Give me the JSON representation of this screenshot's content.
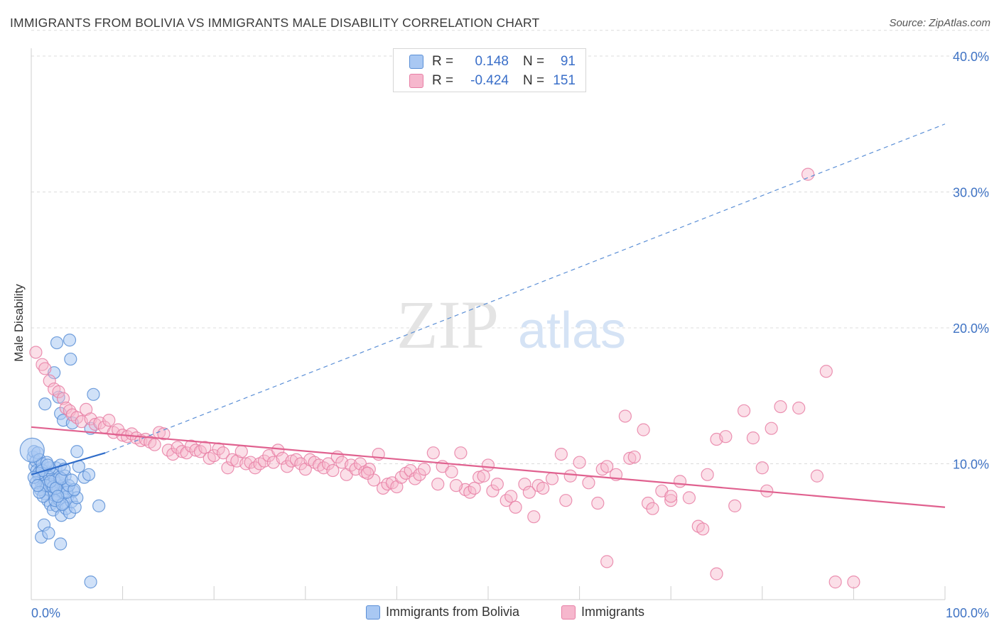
{
  "title": "IMMIGRANTS FROM BOLIVIA VS IMMIGRANTS MALE DISABILITY CORRELATION CHART",
  "source": "Source: ZipAtlas.com",
  "watermark": {
    "zip": "ZIP",
    "atlas": "atlas"
  },
  "colors": {
    "blue": "#5b8fd6",
    "blue_fill": "#a9c8f3",
    "blue_line": "#2f6cc9",
    "pink": "#e77fa5",
    "pink_fill": "#f6b7cd",
    "pink_line": "#e0618f",
    "axis_text": "#3f73c4",
    "grid": "#dcdcdc"
  },
  "legend": {
    "rows": [
      {
        "r_label": "R =",
        "r_value": " 0.148",
        "n_label": "N =",
        "n_value": " 91",
        "series": "blue"
      },
      {
        "r_label": "R =",
        "r_value": "-0.424",
        "n_label": "N =",
        "n_value": "151",
        "series": "pink"
      }
    ]
  },
  "bottom_legend": [
    {
      "label": "Immigrants from Bolivia",
      "series": "blue"
    },
    {
      "label": "Immigrants",
      "series": "pink"
    }
  ],
  "chart_data": {
    "type": "scatter",
    "title": "IMMIGRANTS FROM BOLIVIA VS IMMIGRANTS MALE DISABILITY CORRELATION CHART",
    "xlabel": "",
    "ylabel": "Male Disability",
    "xlim": [
      0,
      100
    ],
    "ylim": [
      0,
      42
    ],
    "x_tick_labels": [
      "0.0%",
      "100.0%"
    ],
    "y_ticks": [
      10,
      20,
      30,
      40
    ],
    "y_tick_labels": [
      "10.0%",
      "20.0%",
      "30.0%",
      "40.0%"
    ],
    "grid": true,
    "series": [
      {
        "name": "Immigrants from Bolivia",
        "color": "blue",
        "R": 0.148,
        "N": 91,
        "trend_solid": [
          [
            0,
            9.2
          ],
          [
            8.1,
            10.8
          ]
        ],
        "trend_dashed": [
          [
            8.1,
            10.8
          ],
          [
            100,
            35.0
          ]
        ],
        "points": [
          [
            0.2,
            10.5
          ],
          [
            0.3,
            10.9
          ],
          [
            0.4,
            9.8
          ],
          [
            0.5,
            10.2
          ],
          [
            0.6,
            9.5
          ],
          [
            0.7,
            10.8
          ],
          [
            0.8,
            9.1
          ],
          [
            0.9,
            10.3
          ],
          [
            1.0,
            8.7
          ],
          [
            1.1,
            9.6
          ],
          [
            1.2,
            10.0
          ],
          [
            1.3,
            8.3
          ],
          [
            1.4,
            9.2
          ],
          [
            1.5,
            7.8
          ],
          [
            1.6,
            8.9
          ],
          [
            1.7,
            9.4
          ],
          [
            1.8,
            7.3
          ],
          [
            1.9,
            8.1
          ],
          [
            2.0,
            9.0
          ],
          [
            2.1,
            7.0
          ],
          [
            2.2,
            8.5
          ],
          [
            2.3,
            9.3
          ],
          [
            2.4,
            6.6
          ],
          [
            2.5,
            7.7
          ],
          [
            2.6,
            8.8
          ],
          [
            2.7,
            9.7
          ],
          [
            2.8,
            6.9
          ],
          [
            2.9,
            8.0
          ],
          [
            3.0,
            7.4
          ],
          [
            3.1,
            8.6
          ],
          [
            3.2,
            9.9
          ],
          [
            3.3,
            6.2
          ],
          [
            3.4,
            7.9
          ],
          [
            3.5,
            8.4
          ],
          [
            3.6,
            7.1
          ],
          [
            3.7,
            9.1
          ],
          [
            3.8,
            6.7
          ],
          [
            3.9,
            8.2
          ],
          [
            4.0,
            7.6
          ],
          [
            4.2,
            6.4
          ],
          [
            4.4,
            7.2
          ],
          [
            4.6,
            8.0
          ],
          [
            4.8,
            6.8
          ],
          [
            5.0,
            7.5
          ],
          [
            1.1,
            4.6
          ],
          [
            1.4,
            5.5
          ],
          [
            1.9,
            4.9
          ],
          [
            3.2,
            4.1
          ],
          [
            1.5,
            14.4
          ],
          [
            2.5,
            16.7
          ],
          [
            2.8,
            18.9
          ],
          [
            3.0,
            14.9
          ],
          [
            3.2,
            13.7
          ],
          [
            3.5,
            13.2
          ],
          [
            4.2,
            19.1
          ],
          [
            4.3,
            17.7
          ],
          [
            4.5,
            13.0
          ],
          [
            5.0,
            10.9
          ],
          [
            5.2,
            9.8
          ],
          [
            5.8,
            9.0
          ],
          [
            6.3,
            9.2
          ],
          [
            6.5,
            12.6
          ],
          [
            6.8,
            15.1
          ],
          [
            7.4,
            6.9
          ],
          [
            6.5,
            1.3
          ],
          [
            0.8,
            9.3
          ],
          [
            1.0,
            8.1
          ],
          [
            1.3,
            7.6
          ],
          [
            1.6,
            8.4
          ],
          [
            2.0,
            9.7
          ],
          [
            2.4,
            8.3
          ],
          [
            2.6,
            7.3
          ],
          [
            3.1,
            9.0
          ],
          [
            3.4,
            7.0
          ],
          [
            3.9,
            7.9
          ],
          [
            4.1,
            8.4
          ],
          [
            4.7,
            8.1
          ],
          [
            0.5,
            8.6
          ],
          [
            0.9,
            7.9
          ],
          [
            1.2,
            9.5
          ],
          [
            1.7,
            10.1
          ],
          [
            2.1,
            8.7
          ],
          [
            2.7,
            8.2
          ],
          [
            3.3,
            8.9
          ],
          [
            3.6,
            9.6
          ],
          [
            0.3,
            9.0
          ],
          [
            0.7,
            8.4
          ],
          [
            1.8,
            9.9
          ],
          [
            2.9,
            7.6
          ],
          [
            4.4,
            8.8
          ],
          [
            0.1,
            11.0
          ]
        ]
      },
      {
        "name": "Immigrants",
        "color": "pink",
        "R": -0.424,
        "N": 151,
        "trend_solid": [
          [
            0,
            12.7
          ],
          [
            100,
            6.8
          ]
        ],
        "points": [
          [
            0.5,
            18.2
          ],
          [
            1.2,
            17.3
          ],
          [
            1.5,
            17.0
          ],
          [
            2.0,
            16.1
          ],
          [
            2.5,
            15.5
          ],
          [
            3.0,
            15.3
          ],
          [
            3.5,
            14.8
          ],
          [
            3.8,
            14.1
          ],
          [
            4.2,
            13.9
          ],
          [
            4.5,
            13.6
          ],
          [
            5.0,
            13.4
          ],
          [
            5.5,
            13.1
          ],
          [
            6.0,
            14.0
          ],
          [
            6.5,
            13.3
          ],
          [
            7.0,
            12.9
          ],
          [
            7.5,
            13.0
          ],
          [
            8.0,
            12.7
          ],
          [
            8.5,
            13.2
          ],
          [
            9.0,
            12.3
          ],
          [
            9.5,
            12.5
          ],
          [
            10.0,
            12.1
          ],
          [
            10.5,
            12.0
          ],
          [
            11.0,
            12.2
          ],
          [
            11.5,
            11.9
          ],
          [
            12.0,
            11.7
          ],
          [
            12.5,
            11.8
          ],
          [
            13.0,
            11.6
          ],
          [
            13.5,
            11.4
          ],
          [
            14.0,
            12.3
          ],
          [
            14.5,
            12.2
          ],
          [
            15.0,
            11.0
          ],
          [
            15.5,
            10.7
          ],
          [
            16.0,
            11.2
          ],
          [
            16.5,
            10.9
          ],
          [
            17.0,
            10.8
          ],
          [
            17.5,
            11.3
          ],
          [
            18.0,
            11.0
          ],
          [
            18.5,
            10.9
          ],
          [
            19.0,
            11.2
          ],
          [
            19.5,
            10.4
          ],
          [
            20.0,
            10.6
          ],
          [
            20.5,
            11.1
          ],
          [
            21.0,
            10.8
          ],
          [
            21.5,
            9.7
          ],
          [
            22.0,
            10.3
          ],
          [
            22.5,
            10.2
          ],
          [
            23.0,
            10.9
          ],
          [
            23.5,
            10.0
          ],
          [
            24.0,
            10.1
          ],
          [
            24.5,
            9.7
          ],
          [
            25.0,
            10.0
          ],
          [
            25.5,
            10.2
          ],
          [
            26.0,
            10.6
          ],
          [
            26.5,
            10.1
          ],
          [
            27.0,
            11.0
          ],
          [
            27.5,
            10.4
          ],
          [
            28.0,
            9.8
          ],
          [
            28.5,
            10.2
          ],
          [
            29.0,
            10.3
          ],
          [
            29.5,
            10.0
          ],
          [
            30.0,
            9.6
          ],
          [
            30.5,
            10.3
          ],
          [
            31.0,
            10.1
          ],
          [
            31.5,
            9.9
          ],
          [
            32.0,
            9.7
          ],
          [
            32.5,
            10.0
          ],
          [
            33.0,
            9.5
          ],
          [
            33.5,
            10.5
          ],
          [
            34.0,
            10.1
          ],
          [
            34.5,
            9.2
          ],
          [
            35.0,
            9.9
          ],
          [
            35.5,
            9.6
          ],
          [
            36.0,
            10.0
          ],
          [
            36.5,
            9.4
          ],
          [
            37.0,
            9.6
          ],
          [
            37.5,
            8.8
          ],
          [
            38.0,
            10.7
          ],
          [
            38.5,
            8.2
          ],
          [
            39.0,
            8.5
          ],
          [
            39.5,
            8.6
          ],
          [
            40.0,
            8.3
          ],
          [
            40.5,
            9.0
          ],
          [
            41.0,
            9.3
          ],
          [
            41.5,
            9.5
          ],
          [
            42.0,
            8.9
          ],
          [
            42.5,
            9.2
          ],
          [
            43.0,
            9.6
          ],
          [
            44.0,
            10.8
          ],
          [
            44.5,
            8.5
          ],
          [
            45.0,
            9.8
          ],
          [
            46.0,
            9.4
          ],
          [
            47.0,
            10.8
          ],
          [
            47.5,
            8.1
          ],
          [
            48.0,
            7.9
          ],
          [
            48.5,
            8.2
          ],
          [
            49.0,
            9.0
          ],
          [
            49.5,
            9.1
          ],
          [
            50.0,
            9.9
          ],
          [
            50.5,
            8.0
          ],
          [
            51.0,
            8.5
          ],
          [
            52.0,
            7.3
          ],
          [
            52.5,
            7.6
          ],
          [
            53.0,
            6.8
          ],
          [
            54.0,
            8.5
          ],
          [
            54.5,
            7.9
          ],
          [
            55.0,
            6.1
          ],
          [
            55.5,
            8.4
          ],
          [
            56.0,
            8.2
          ],
          [
            57.0,
            8.9
          ],
          [
            58.0,
            10.7
          ],
          [
            59.0,
            9.1
          ],
          [
            60.0,
            10.1
          ],
          [
            61.0,
            8.6
          ],
          [
            62.0,
            7.1
          ],
          [
            62.5,
            9.6
          ],
          [
            63.0,
            9.8
          ],
          [
            64.0,
            9.2
          ],
          [
            65.0,
            13.5
          ],
          [
            65.5,
            10.4
          ],
          [
            66.0,
            10.5
          ],
          [
            67.0,
            12.5
          ],
          [
            67.5,
            7.1
          ],
          [
            68.0,
            6.7
          ],
          [
            69.0,
            8.0
          ],
          [
            70.0,
            7.3
          ],
          [
            71.0,
            8.7
          ],
          [
            72.0,
            7.5
          ],
          [
            73.0,
            5.4
          ],
          [
            74.0,
            9.2
          ],
          [
            75.0,
            11.8
          ],
          [
            76.0,
            12.0
          ],
          [
            77.0,
            6.9
          ],
          [
            78.0,
            13.9
          ],
          [
            79.0,
            11.9
          ],
          [
            80.0,
            9.7
          ],
          [
            81.0,
            12.6
          ],
          [
            82.0,
            14.2
          ],
          [
            84.0,
            14.1
          ],
          [
            85.0,
            31.3
          ],
          [
            87.0,
            16.8
          ],
          [
            63.0,
            2.8
          ],
          [
            75.0,
            1.9
          ],
          [
            88.0,
            1.3
          ],
          [
            90.0,
            1.3
          ],
          [
            70.0,
            7.6
          ],
          [
            73.5,
            5.2
          ],
          [
            80.5,
            8.0
          ],
          [
            86.0,
            9.1
          ],
          [
            58.5,
            7.3
          ],
          [
            46.5,
            8.4
          ],
          [
            36.8,
            9.3
          ]
        ]
      }
    ]
  }
}
